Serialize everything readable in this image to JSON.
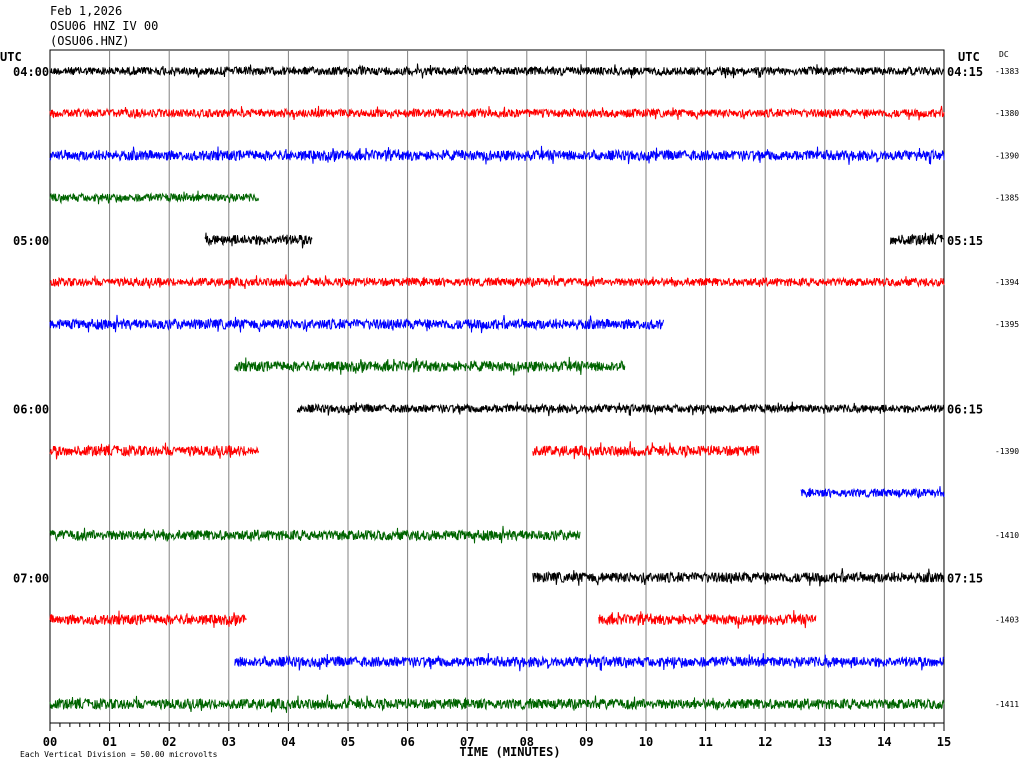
{
  "header": {
    "date": "Feb 1,2026",
    "station": "OSU06 HNZ IV 00",
    "code": "(OSU06.HNZ)"
  },
  "chart_data": {
    "type": "line",
    "description_kind": "helicorder",
    "xlabel": "TIME (MINUTES)",
    "x_ticks": [
      "00",
      "01",
      "02",
      "03",
      "04",
      "05",
      "06",
      "07",
      "08",
      "09",
      "10",
      "11",
      "12",
      "13",
      "14",
      "15"
    ],
    "xlim": [
      0,
      15
    ],
    "left_axis_title": "UTC",
    "right_axis_title": "UTC",
    "dc_title": "DC",
    "footer_note": "Each Vertical Division = 50.00 microvolts",
    "rows": [
      {
        "left_label": "04:00",
        "right_label": "04:15",
        "dc": "-1383",
        "color": "#000000",
        "segments": [
          [
            0,
            15
          ]
        ],
        "amp": 4
      },
      {
        "dc": "-1380",
        "color": "#ff0000",
        "segments": [
          [
            0,
            15
          ]
        ],
        "amp": 4
      },
      {
        "dc": "-1390",
        "color": "#0000ff",
        "segments": [
          [
            0,
            15
          ]
        ],
        "amp": 5
      },
      {
        "dc": "-1385",
        "color": "#006400",
        "segments": [
          [
            0,
            3.5
          ]
        ],
        "amp": 4
      },
      {
        "left_label": "05:00",
        "right_label": "05:15",
        "color": "#000000",
        "segments": [
          [
            2.6,
            4.4
          ],
          [
            14.1,
            15
          ]
        ],
        "amp": 5
      },
      {
        "dc": "-1394",
        "color": "#ff0000",
        "segments": [
          [
            0,
            15
          ]
        ],
        "amp": 4
      },
      {
        "dc": "-1395",
        "color": "#0000ff",
        "segments": [
          [
            0,
            10.3
          ]
        ],
        "amp": 5
      },
      {
        "color": "#006400",
        "segments": [
          [
            3.1,
            9.65
          ]
        ],
        "amp": 5
      },
      {
        "left_label": "06:00",
        "right_label": "06:15",
        "color": "#000000",
        "segments": [
          [
            4.15,
            15
          ]
        ],
        "amp": 4
      },
      {
        "dc": "-1390",
        "color": "#ff0000",
        "segments": [
          [
            0,
            3.5
          ],
          [
            8.1,
            11.9
          ]
        ],
        "amp": 5
      },
      {
        "color": "#0000ff",
        "segments": [
          [
            12.6,
            15
          ]
        ],
        "amp": 4
      },
      {
        "dc": "-1410",
        "color": "#006400",
        "segments": [
          [
            0,
            8.9
          ]
        ],
        "amp": 5
      },
      {
        "left_label": "07:00",
        "right_label": "07:15",
        "color": "#000000",
        "segments": [
          [
            8.1,
            15
          ]
        ],
        "amp": 5
      },
      {
        "dc": "-1403",
        "color": "#ff0000",
        "segments": [
          [
            0,
            3.3
          ],
          [
            9.2,
            12.85
          ]
        ],
        "amp": 5
      },
      {
        "color": "#0000ff",
        "segments": [
          [
            3.1,
            15
          ]
        ],
        "amp": 5
      },
      {
        "dc": "-1411",
        "color": "#006400",
        "segments": [
          [
            0,
            15
          ]
        ],
        "amp": 5
      }
    ]
  }
}
